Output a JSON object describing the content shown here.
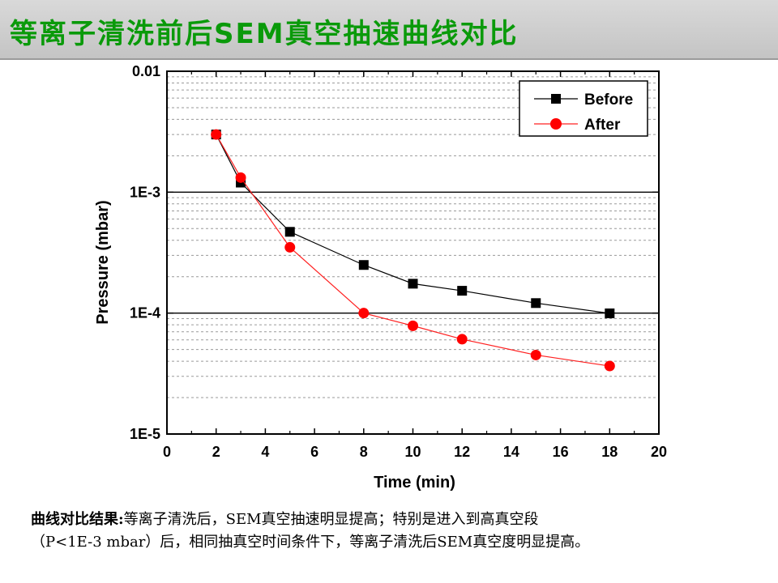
{
  "header": {
    "title": "等离子清洗前后SEM真空抽速曲线对比"
  },
  "colors": {
    "title": "#0a9a0a",
    "before": "#000000",
    "after": "#ff0000",
    "after_line": "#ff2020"
  },
  "chart_data": {
    "type": "line",
    "title": "",
    "xlabel": "Time (min)",
    "ylabel": "Pressure (mbar)",
    "xlim": [
      0,
      20
    ],
    "ylim": [
      1e-05,
      0.01
    ],
    "yscale": "log",
    "x_ticks": [
      "0",
      "2",
      "4",
      "6",
      "8",
      "10",
      "12",
      "14",
      "16",
      "18",
      "20"
    ],
    "y_ticks": [
      "1E-5",
      "1E-4",
      "1E-3",
      "0.01"
    ],
    "grid": true,
    "legend_position": "top-right",
    "series": [
      {
        "name": "Before",
        "marker": "square",
        "x": [
          2,
          3,
          5,
          8,
          10,
          12,
          15,
          18
        ],
        "y": [
          0.003,
          0.0012,
          0.00047,
          0.00025,
          0.000175,
          0.000153,
          0.000121,
          9.95e-05
        ]
      },
      {
        "name": "After",
        "marker": "circle",
        "x": [
          2,
          3,
          5,
          8,
          10,
          12,
          15,
          18
        ],
        "y": [
          0.003,
          0.00132,
          0.00035,
          0.0001,
          7.85e-05,
          6.08e-05,
          4.5e-05,
          3.65e-05
        ]
      }
    ]
  },
  "caption": {
    "lead": "曲线对比结果:",
    "line1": "等离子清洗后，SEM真空抽速明显提高；特别是进入到高真空段",
    "line2": "（P<1E-3 mbar）后，相同抽真空时间条件下，等离子清洗后SEM真空度明显提高。"
  }
}
